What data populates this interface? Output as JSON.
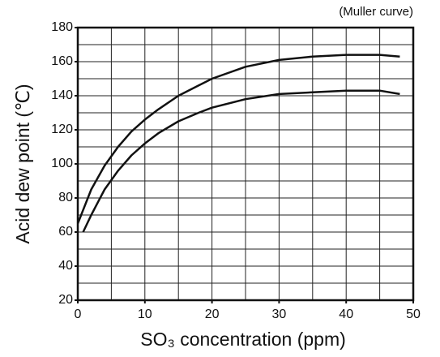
{
  "chart_data": {
    "type": "line",
    "annotation": "(Muller curve)",
    "xlabel": "SO₃ concentration (ppm)",
    "ylabel": "Acid dew point (℃)",
    "xlim": [
      0,
      50
    ],
    "xticks": [
      0,
      10,
      20,
      30,
      40,
      50
    ],
    "ylim": [
      20,
      180
    ],
    "yticks": [
      20,
      40,
      60,
      80,
      100,
      120,
      140,
      160,
      180
    ],
    "xgrid": [
      5,
      10,
      15,
      20,
      25,
      30,
      35,
      40,
      45
    ],
    "ygrid": [
      30,
      40,
      50,
      60,
      70,
      80,
      90,
      100,
      110,
      120,
      130,
      140,
      150,
      160,
      170
    ],
    "grid": true,
    "series": [
      {
        "color": "#111111",
        "x": [
          0,
          2,
          4,
          6,
          8,
          10,
          12,
          15,
          18,
          20,
          25,
          30,
          35,
          40,
          45,
          48
        ],
        "values": [
          65,
          85,
          99,
          110,
          119,
          126,
          132,
          140,
          146,
          150,
          157,
          161,
          163,
          164,
          164,
          163
        ]
      },
      {
        "color": "#111111",
        "x": [
          0.8,
          2,
          4,
          6,
          8,
          10,
          12,
          15,
          18,
          20,
          25,
          30,
          35,
          40,
          45,
          48
        ],
        "values": [
          60,
          70,
          85,
          96,
          105,
          112,
          118,
          125,
          130,
          133,
          138,
          141,
          142,
          143,
          143,
          141
        ]
      }
    ]
  }
}
